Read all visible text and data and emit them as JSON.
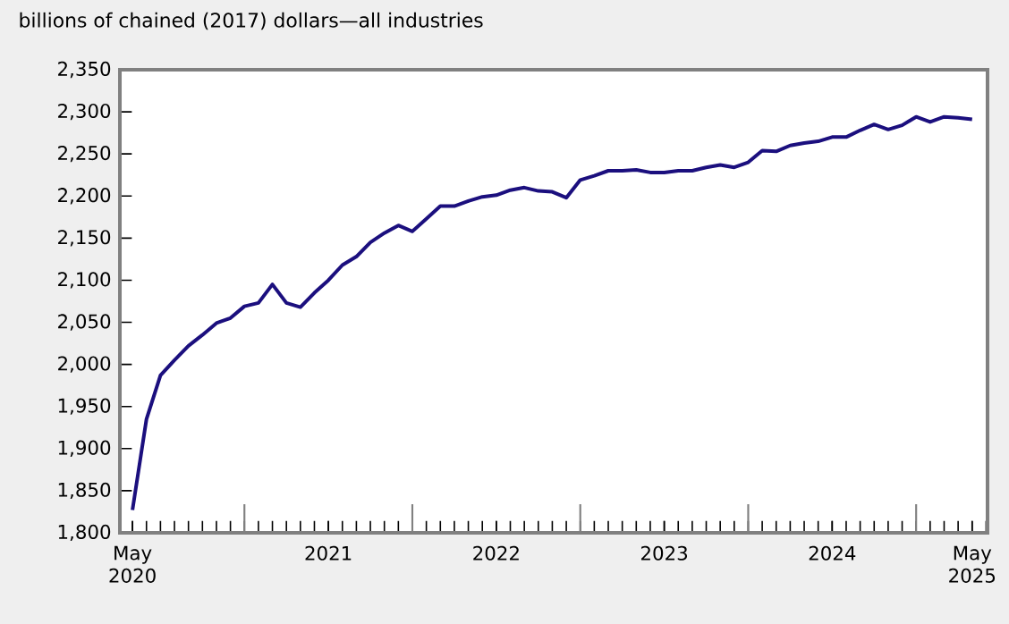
{
  "chart_data": {
    "type": "line",
    "ylabel": "billions of chained (2017) dollars—all industries",
    "x": [
      "2020-05",
      "2020-06",
      "2020-07",
      "2020-08",
      "2020-09",
      "2020-10",
      "2020-11",
      "2020-12",
      "2021-01",
      "2021-02",
      "2021-03",
      "2021-04",
      "2021-05",
      "2021-06",
      "2021-07",
      "2021-08",
      "2021-09",
      "2021-10",
      "2021-11",
      "2021-12",
      "2022-01",
      "2022-02",
      "2022-03",
      "2022-04",
      "2022-05",
      "2022-06",
      "2022-07",
      "2022-08",
      "2022-09",
      "2022-10",
      "2022-11",
      "2022-12",
      "2023-01",
      "2023-02",
      "2023-03",
      "2023-04",
      "2023-05",
      "2023-06",
      "2023-07",
      "2023-08",
      "2023-09",
      "2023-10",
      "2023-11",
      "2023-12",
      "2024-01",
      "2024-02",
      "2024-03",
      "2024-04",
      "2024-05",
      "2024-06",
      "2024-07",
      "2024-08",
      "2024-09",
      "2024-10",
      "2024-11",
      "2024-12",
      "2025-01",
      "2025-02",
      "2025-03",
      "2025-04",
      "2025-05"
    ],
    "series": [
      {
        "color": "#1b0f7e",
        "values": [
          1827,
          1935,
          1987,
          2005,
          2022,
          2035,
          2049,
          2055,
          2069,
          2073,
          2095,
          2073,
          2068,
          2085,
          2100,
          2118,
          2128,
          2145,
          2156,
          2165,
          2158,
          2173,
          2188,
          2188,
          2194,
          2199,
          2201,
          2207,
          2210,
          2206,
          2205,
          2198,
          2219,
          2224,
          2230,
          2230,
          2231,
          2228,
          2228,
          2230,
          2230,
          2234,
          2237,
          2234,
          2240,
          2254,
          2253,
          2260,
          2263,
          2265,
          2270,
          2270,
          2278,
          2285,
          2279,
          2284,
          2294,
          2288,
          2294,
          2293,
          2291
        ]
      }
    ],
    "xlim": [
      "2020-04-04",
      "2025-06-04"
    ],
    "xticks": [
      {
        "value": "2020-05",
        "label": "May 2020"
      },
      {
        "value": "2021-01",
        "label": null
      },
      {
        "value": "2021-07",
        "label": "2021"
      },
      {
        "value": "2022-01",
        "label": null
      },
      {
        "value": "2022-07",
        "label": "2022"
      },
      {
        "value": "2023-01",
        "label": null
      },
      {
        "value": "2023-07",
        "label": "2023"
      },
      {
        "value": "2024-01",
        "label": null
      },
      {
        "value": "2024-07",
        "label": "2024"
      },
      {
        "value": "2025-01",
        "label": null
      },
      {
        "value": "2025-05",
        "label": "May 2025"
      }
    ],
    "ylim": [
      1800,
      2350
    ],
    "yticks": [
      {
        "value": 1800,
        "label": "1,800"
      },
      {
        "value": 1850,
        "label": "1,850"
      },
      {
        "value": 1900,
        "label": "1,900"
      },
      {
        "value": 1950,
        "label": "1,950"
      },
      {
        "value": 2000,
        "label": "2,000"
      },
      {
        "value": 2050,
        "label": "2,050"
      },
      {
        "value": 2100,
        "label": "2,100"
      },
      {
        "value": 2150,
        "label": "2,150"
      },
      {
        "value": 2200,
        "label": "2,200"
      },
      {
        "value": 2250,
        "label": "2,250"
      },
      {
        "value": 2300,
        "label": "2,300"
      },
      {
        "value": 2350,
        "label": "2,350"
      }
    ]
  }
}
